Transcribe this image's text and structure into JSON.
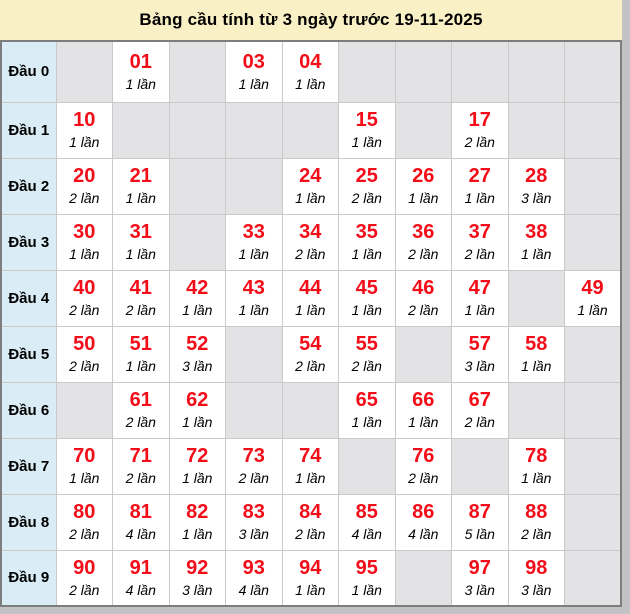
{
  "title": "Bảng cầu tính từ 3 ngày trước 19-11-2025",
  "colors": {
    "title_bg": "#FAF0C6",
    "label_bg": "#DAEDF6",
    "empty_cell_bg": "#E3E3E5",
    "filled_cell_bg": "#FFFFFF",
    "number_red": "#F30D19",
    "outer_border": "#7D7D7D",
    "cell_border": "#C9C9C9",
    "page_bg": "#C3C3C5"
  },
  "table": {
    "rows": [
      {
        "label": "Đầu 0",
        "cells": [
          null,
          {
            "n": "01",
            "c": "1 lần"
          },
          null,
          {
            "n": "03",
            "c": "1 lần"
          },
          {
            "n": "04",
            "c": "1 lần"
          },
          null,
          null,
          null,
          null,
          null
        ]
      },
      {
        "label": "Đầu 1",
        "cells": [
          {
            "n": "10",
            "c": "1 lần"
          },
          null,
          null,
          null,
          null,
          {
            "n": "15",
            "c": "1 lần"
          },
          null,
          {
            "n": "17",
            "c": "2 lần"
          },
          null,
          null
        ]
      },
      {
        "label": "Đầu 2",
        "cells": [
          {
            "n": "20",
            "c": "2 lần"
          },
          {
            "n": "21",
            "c": "1 lần"
          },
          null,
          null,
          {
            "n": "24",
            "c": "1 lần"
          },
          {
            "n": "25",
            "c": "2 lần"
          },
          {
            "n": "26",
            "c": "1 lần"
          },
          {
            "n": "27",
            "c": "1 lần"
          },
          {
            "n": "28",
            "c": "3 lần"
          },
          null
        ]
      },
      {
        "label": "Đầu 3",
        "cells": [
          {
            "n": "30",
            "c": "1 lần"
          },
          {
            "n": "31",
            "c": "1 lần"
          },
          null,
          {
            "n": "33",
            "c": "1 lần"
          },
          {
            "n": "34",
            "c": "2 lần"
          },
          {
            "n": "35",
            "c": "1 lần"
          },
          {
            "n": "36",
            "c": "2 lần"
          },
          {
            "n": "37",
            "c": "2 lần"
          },
          {
            "n": "38",
            "c": "1 lần"
          },
          null
        ]
      },
      {
        "label": "Đầu 4",
        "cells": [
          {
            "n": "40",
            "c": "2 lần"
          },
          {
            "n": "41",
            "c": "2 lần"
          },
          {
            "n": "42",
            "c": "1 lần"
          },
          {
            "n": "43",
            "c": "1 lần"
          },
          {
            "n": "44",
            "c": "1 lần"
          },
          {
            "n": "45",
            "c": "1 lần"
          },
          {
            "n": "46",
            "c": "2 lần"
          },
          {
            "n": "47",
            "c": "1 lần"
          },
          null,
          {
            "n": "49",
            "c": "1 lần"
          }
        ]
      },
      {
        "label": "Đầu 5",
        "cells": [
          {
            "n": "50",
            "c": "2 lần"
          },
          {
            "n": "51",
            "c": "1 lần"
          },
          {
            "n": "52",
            "c": "3 lần"
          },
          null,
          {
            "n": "54",
            "c": "2 lần"
          },
          {
            "n": "55",
            "c": "2 lần"
          },
          null,
          {
            "n": "57",
            "c": "3 lần"
          },
          {
            "n": "58",
            "c": "1 lần"
          },
          null
        ]
      },
      {
        "label": "Đầu 6",
        "cells": [
          null,
          {
            "n": "61",
            "c": "2 lần"
          },
          {
            "n": "62",
            "c": "1 lần"
          },
          null,
          null,
          {
            "n": "65",
            "c": "1 lần"
          },
          {
            "n": "66",
            "c": "1 lần"
          },
          {
            "n": "67",
            "c": "2 lần"
          },
          null,
          null
        ]
      },
      {
        "label": "Đầu 7",
        "cells": [
          {
            "n": "70",
            "c": "1 lần"
          },
          {
            "n": "71",
            "c": "2 lần"
          },
          {
            "n": "72",
            "c": "1 lần"
          },
          {
            "n": "73",
            "c": "2 lần"
          },
          {
            "n": "74",
            "c": "1 lần"
          },
          null,
          {
            "n": "76",
            "c": "2 lần"
          },
          null,
          {
            "n": "78",
            "c": "1 lần"
          },
          null
        ]
      },
      {
        "label": "Đầu 8",
        "cells": [
          {
            "n": "80",
            "c": "2 lần"
          },
          {
            "n": "81",
            "c": "4 lần"
          },
          {
            "n": "82",
            "c": "1 lần"
          },
          {
            "n": "83",
            "c": "3 lần"
          },
          {
            "n": "84",
            "c": "2 lần"
          },
          {
            "n": "85",
            "c": "4 lần"
          },
          {
            "n": "86",
            "c": "4 lần"
          },
          {
            "n": "87",
            "c": "5 lần"
          },
          {
            "n": "88",
            "c": "2 lần"
          },
          null
        ]
      },
      {
        "label": "Đầu 9",
        "cells": [
          {
            "n": "90",
            "c": "2 lần"
          },
          {
            "n": "91",
            "c": "4 lần"
          },
          {
            "n": "92",
            "c": "3 lần"
          },
          {
            "n": "93",
            "c": "4 lần"
          },
          {
            "n": "94",
            "c": "1 lần"
          },
          {
            "n": "95",
            "c": "1 lần"
          },
          null,
          {
            "n": "97",
            "c": "3 lần"
          },
          {
            "n": "98",
            "c": "3 lần"
          },
          null
        ]
      }
    ]
  }
}
